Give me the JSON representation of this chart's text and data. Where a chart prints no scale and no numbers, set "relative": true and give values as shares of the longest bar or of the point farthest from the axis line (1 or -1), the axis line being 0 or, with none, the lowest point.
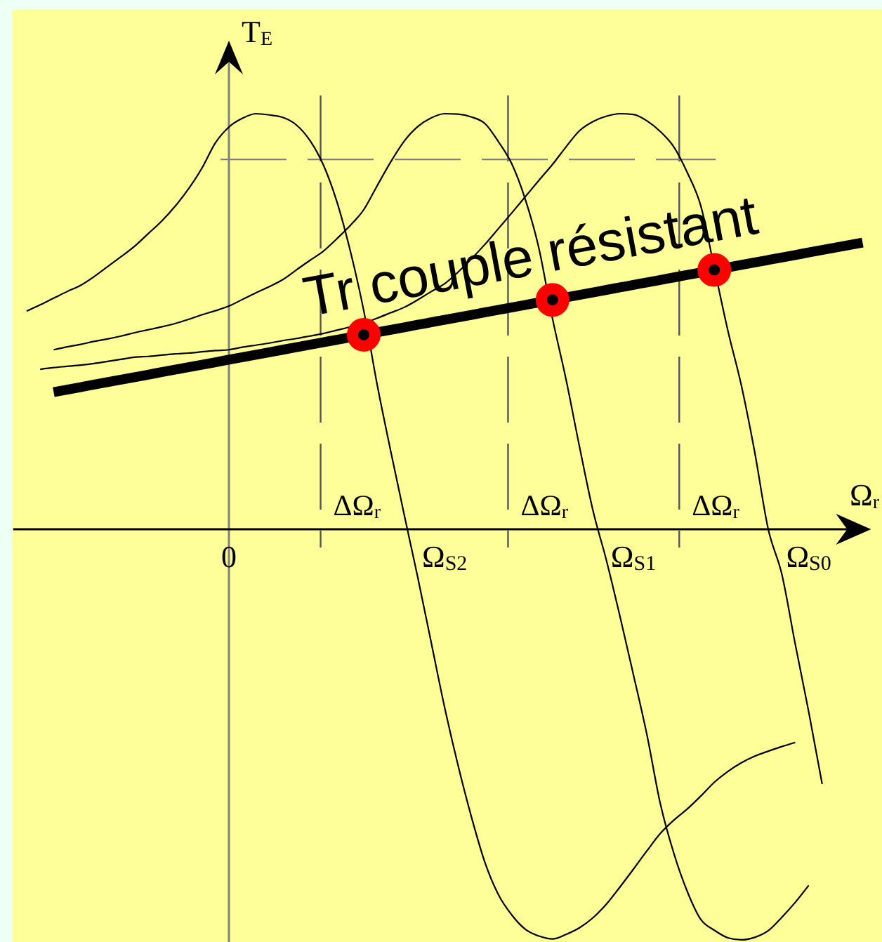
{
  "chart_data": {
    "type": "line",
    "relative": true,
    "xlabel": "Ω$_{r}$",
    "ylabel": "T$_{E}$",
    "categories": [
      null,
      null,
      null,
      null,
      null,
      null,
      null,
      null,
      null,
      null,
      null,
      null,
      null,
      null,
      null,
      null,
      "0",
      null,
      null,
      null,
      null,
      null,
      null,
      null,
      null,
      null,
      null,
      null,
      null,
      null,
      null,
      null,
      "Ω$_{S2}$",
      null,
      null,
      null,
      null,
      null,
      null,
      null,
      null,
      null,
      null,
      null,
      null,
      null,
      "Ω$_{S1}$",
      null,
      null,
      null,
      null,
      null,
      null,
      null,
      null,
      null,
      null,
      null,
      null,
      "Ω$_{S0}$",
      null,
      null,
      null,
      null
    ],
    "series": [
      {
        "color": "#000000",
        "values": [
          null,
          0.525,
          0.54,
          0.556,
          0.572,
          0.587,
          0.608,
          0.632,
          0.656,
          0.681,
          0.711,
          0.741,
          0.777,
          0.819,
          0.869,
          0.93,
          0.968,
          0.989,
          1.0,
          0.997,
          0.991,
          0.973,
          0.936,
          0.877,
          0.789,
          0.67,
          0.526,
          0.347,
          0.188,
          0.035,
          -0.115,
          -0.272,
          -0.429,
          -0.569,
          -0.694,
          -0.803,
          -0.88,
          -0.929,
          -0.963,
          -0.979,
          -0.986,
          -0.975,
          -0.959,
          -0.935,
          -0.902,
          -0.861,
          -0.818,
          -0.774,
          -0.732,
          -0.7,
          -0.673,
          -0.642,
          -0.609,
          -0.583,
          -0.562,
          -0.546,
          -0.534,
          -0.523,
          -0.513,
          null,
          null,
          null,
          null,
          null
        ]
      },
      {
        "color": "#000000",
        "values": [
          null,
          null,
          null,
          0.432,
          0.439,
          0.445,
          0.452,
          0.458,
          0.465,
          0.473,
          0.48,
          0.487,
          0.495,
          0.505,
          0.516,
          0.526,
          0.537,
          0.553,
          0.569,
          0.584,
          0.601,
          0.624,
          0.647,
          0.669,
          0.699,
          0.731,
          0.769,
          0.827,
          0.884,
          0.934,
          0.969,
          0.99,
          1.0,
          0.999,
          0.992,
          0.976,
          0.932,
          0.878,
          0.792,
          0.675,
          0.507,
          0.361,
          0.199,
          0.045,
          -0.075,
          -0.209,
          -0.35,
          -0.494,
          -0.661,
          -0.78,
          -0.872,
          -0.939,
          -0.965,
          -0.983,
          -0.988,
          -0.982,
          -0.966,
          -0.934,
          -0.898,
          -0.857,
          null,
          null,
          null,
          null
        ]
      },
      {
        "color": "#000000",
        "values": [
          null,
          null,
          0.385,
          0.389,
          0.392,
          0.395,
          0.399,
          0.404,
          0.409,
          0.414,
          0.416,
          0.419,
          0.422,
          0.424,
          0.427,
          0.43,
          0.432,
          0.438,
          0.443,
          0.448,
          0.454,
          0.459,
          0.465,
          0.471,
          0.479,
          0.487,
          0.496,
          0.508,
          0.521,
          0.534,
          0.552,
          0.572,
          0.591,
          0.619,
          0.651,
          0.686,
          0.724,
          0.762,
          0.801,
          0.84,
          0.878,
          0.92,
          0.959,
          0.981,
          0.994,
          1.0,
          0.998,
          0.983,
          0.957,
          0.92,
          0.858,
          0.778,
          0.629,
          0.479,
          0.347,
          0.185,
          0,
          -0.107,
          -0.276,
          -0.439,
          -0.613,
          null,
          null,
          null
        ]
      },
      {
        "name": "Tr couple résistant",
        "color": "#000000",
        "values": [
          null,
          null,
          null,
          0.33,
          0.336,
          0.342,
          0.348,
          0.354,
          0.36,
          0.366,
          0.372,
          0.378,
          0.384,
          0.39,
          0.396,
          0.402,
          0.408,
          0.414,
          0.42,
          0.426,
          0.432,
          0.438,
          0.444,
          0.45,
          0.456,
          0.462,
          0.468,
          0.474,
          0.48,
          0.486,
          0.492,
          0.498,
          0.504,
          0.51,
          0.516,
          0.522,
          0.528,
          0.534,
          0.54,
          0.546,
          0.552,
          0.558,
          0.564,
          0.57,
          0.576,
          0.582,
          0.588,
          0.594,
          0.6,
          0.606,
          0.612,
          0.618,
          0.624,
          0.63,
          0.636,
          0.642,
          0.648,
          0.654,
          0.66,
          0.666,
          0.672,
          0.678,
          0.684,
          0.69
        ]
      },
      {
        "type": "scatter",
        "marker": "circle",
        "color": "#ff0000",
        "values": [
          null,
          null,
          null,
          null,
          null,
          null,
          null,
          null,
          null,
          null,
          null,
          null,
          null,
          null,
          null,
          null,
          null,
          null,
          null,
          null,
          null,
          null,
          null,
          null,
          null,
          null,
          0.468,
          null,
          null,
          null,
          null,
          null,
          null,
          null,
          null,
          null,
          null,
          null,
          null,
          null,
          0.552,
          null,
          null,
          null,
          null,
          null,
          null,
          null,
          null,
          null,
          null,
          null,
          0.624,
          null,
          null,
          null,
          null,
          null,
          null,
          null,
          null,
          null,
          null,
          null
        ]
      }
    ],
    "ref_lines": [
      {
        "axis": "y",
        "value": 0.89,
        "color": "#808080",
        "line_style": "dashed"
      }
    ],
    "annotations": [
      "ΔΩ$_{r}$",
      "ΔΩ$_{r}$",
      "ΔΩ$_{r}$"
    ]
  }
}
